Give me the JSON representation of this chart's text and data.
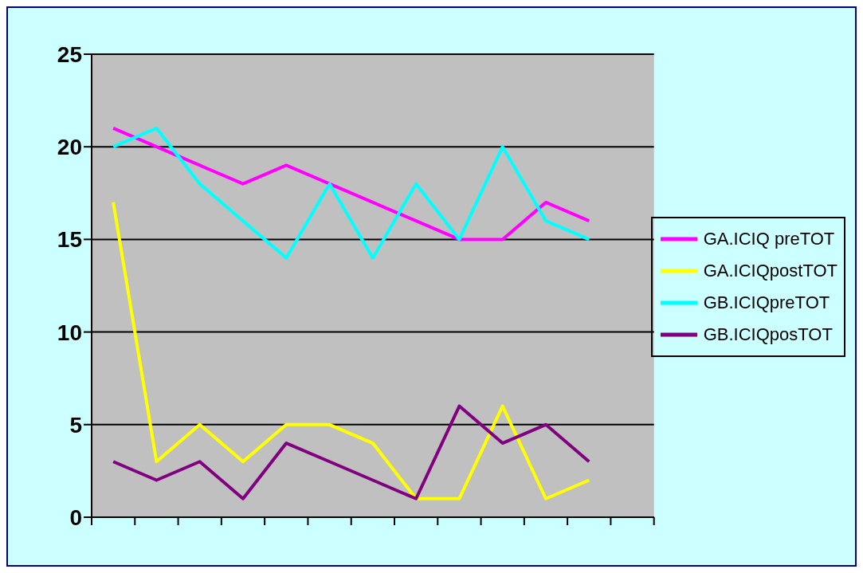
{
  "chart_data": {
    "type": "line",
    "categories": [
      null,
      null,
      null,
      null,
      null,
      null,
      null,
      null,
      null,
      null,
      null,
      null,
      null
    ],
    "series": [
      {
        "name": "GA.ICIQ preTOT",
        "color": "#ff00ff",
        "values": [
          21,
          20,
          19,
          18,
          19,
          18,
          17,
          16,
          15,
          15,
          17,
          16,
          null
        ]
      },
      {
        "name": "GA.ICIQpostTOT",
        "color": "#ffff00",
        "values": [
          17,
          3,
          5,
          3,
          5,
          5,
          4,
          1,
          1,
          6,
          1,
          2,
          null
        ]
      },
      {
        "name": "GB.ICIQpreTOT",
        "color": "#00ffff",
        "values": [
          20,
          21,
          18,
          16,
          14,
          18,
          14,
          18,
          15,
          20,
          16,
          15,
          null
        ]
      },
      {
        "name": "GB.ICIQposTOT",
        "color": "#800080",
        "values": [
          3,
          2,
          3,
          1,
          4,
          3,
          2,
          1,
          6,
          4,
          5,
          3,
          null
        ]
      }
    ],
    "ylim": [
      0,
      25
    ],
    "yticks": [
      0,
      5,
      10,
      15,
      20,
      25
    ],
    "grid": "y",
    "legend": "right",
    "marker": "none",
    "line_style": "solid"
  }
}
